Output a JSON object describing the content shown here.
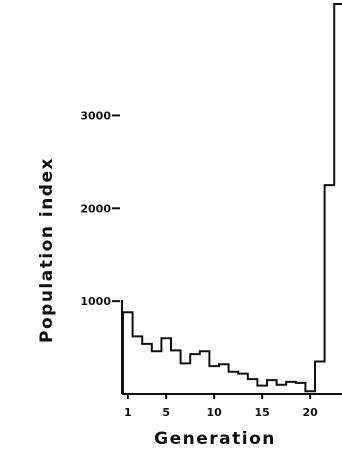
{
  "chart_data": {
    "type": "bar",
    "title": "",
    "xlabel": "Generation",
    "ylabel": "Population index",
    "x_tick_labels": [
      "1",
      "5",
      "10",
      "15",
      "20"
    ],
    "y_tick_labels": [
      "1000",
      "2000",
      "3000"
    ],
    "y_ticks": [
      1000,
      2000,
      3000
    ],
    "x_ticks": [
      1,
      5,
      10,
      15,
      20
    ],
    "ylim": [
      0,
      4200
    ],
    "categories": [
      1,
      2,
      3,
      4,
      5,
      6,
      7,
      8,
      9,
      10,
      11,
      12,
      13,
      14,
      15,
      16,
      17,
      18,
      19,
      20,
      21,
      22,
      23
    ],
    "values": [
      880,
      620,
      540,
      460,
      600,
      470,
      330,
      430,
      460,
      300,
      320,
      240,
      220,
      160,
      90,
      150,
      100,
      130,
      120,
      30,
      350,
      2250,
      4200
    ],
    "grid": false,
    "style": {
      "line_color": "#111111",
      "background": "#ffffff"
    }
  }
}
